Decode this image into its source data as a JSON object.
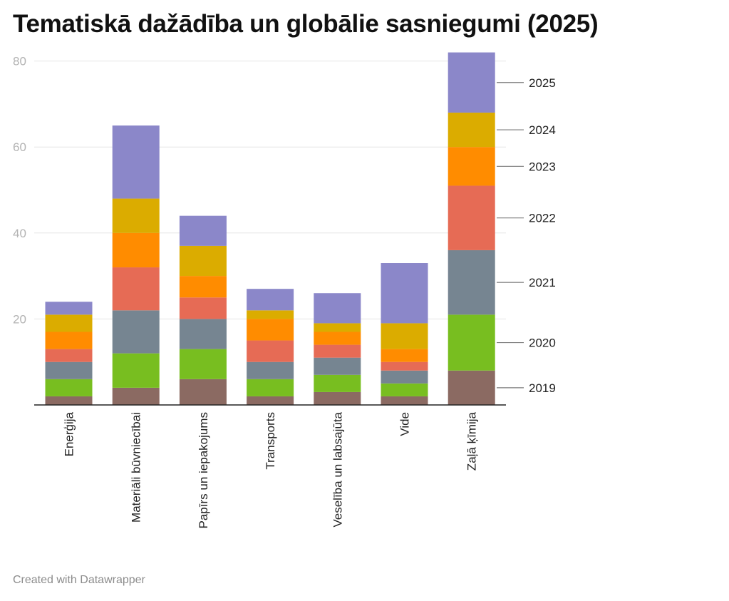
{
  "title": "Tematiskā dažādība un globālie sasniegumi (2025)",
  "footer": "Created with Datawrapper",
  "chart_data": {
    "type": "bar",
    "stacked": true,
    "title": "Tematiskā dažādība un globālie sasniegumi (2025)",
    "xlabel": "",
    "ylabel": "",
    "ylim": [
      0,
      82
    ],
    "yticks": [
      20,
      40,
      60,
      80
    ],
    "grid": true,
    "legend": "right, inline labels",
    "categories": [
      "Enerģija",
      "Materiāli būvniecībai",
      "Papīrs un iepakojums",
      "Transports",
      "Veselība un labsajūta",
      "Vide",
      "Zaļā ķīmija"
    ],
    "series": [
      {
        "name": "2019",
        "color": "#8b6a62",
        "values": [
          2,
          4,
          6,
          2,
          3,
          2,
          8
        ]
      },
      {
        "name": "2020",
        "color": "#78be20",
        "values": [
          4,
          8,
          7,
          4,
          4,
          3,
          13
        ]
      },
      {
        "name": "2021",
        "color": "#768591",
        "values": [
          4,
          10,
          7,
          4,
          4,
          3,
          15
        ]
      },
      {
        "name": "2022",
        "color": "#e66b55",
        "values": [
          3,
          10,
          5,
          5,
          3,
          2,
          15
        ]
      },
      {
        "name": "2023",
        "color": "#ff8c00",
        "values": [
          4,
          8,
          5,
          5,
          3,
          3,
          9
        ]
      },
      {
        "name": "2024",
        "color": "#dbac00",
        "values": [
          4,
          8,
          7,
          2,
          2,
          6,
          8
        ]
      },
      {
        "name": "2025",
        "color": "#8b87c9",
        "values": [
          3,
          17,
          7,
          5,
          7,
          14,
          14
        ]
      }
    ]
  },
  "colors": {
    "grid": "#e5e5e5",
    "axis": "#222222",
    "tick_text": "#b3b3b3",
    "leader": "#7a7a7a"
  }
}
